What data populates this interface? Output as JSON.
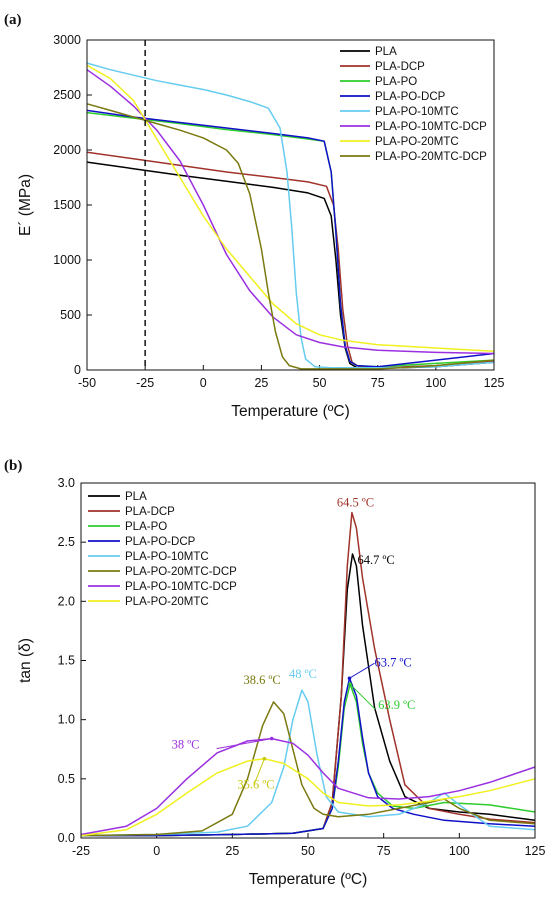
{
  "chart_data": [
    {
      "type": "line",
      "panel_label": "(a)",
      "xlabel": "Temperature (ºC)",
      "ylabel": "E´ (MPa)",
      "xlim": [
        -50,
        125
      ],
      "ylim": [
        0,
        3000
      ],
      "xticks": [
        "-50",
        "-25",
        "0",
        "25",
        "50",
        "75",
        "100",
        "125"
      ],
      "yticks": [
        "0",
        "500",
        "1000",
        "1500",
        "2000",
        "2500",
        "3000"
      ],
      "legend_position": "top-right",
      "reference_line_x": -25,
      "series": [
        {
          "name": "PLA",
          "color": "#000000",
          "x": [
            -50,
            -30,
            -10,
            10,
            30,
            45,
            52,
            55,
            57,
            59,
            61,
            63,
            66,
            75,
            100,
            125
          ],
          "y": [
            1890,
            1830,
            1770,
            1715,
            1660,
            1610,
            1560,
            1400,
            1000,
            500,
            200,
            60,
            20,
            15,
            30,
            70
          ]
        },
        {
          "name": "PLA-DCP",
          "color": "#a0332a",
          "x": [
            -50,
            -30,
            -10,
            10,
            30,
            45,
            53,
            56,
            58,
            60,
            62,
            64,
            67,
            75,
            100,
            125
          ],
          "y": [
            1980,
            1920,
            1860,
            1800,
            1750,
            1710,
            1670,
            1500,
            1100,
            550,
            220,
            70,
            30,
            20,
            40,
            80
          ]
        },
        {
          "name": "PLA-PO",
          "color": "#2ecc2e",
          "x": [
            -50,
            -30,
            -10,
            10,
            30,
            45,
            52,
            55,
            57,
            59,
            61,
            63,
            66,
            75,
            100,
            125
          ],
          "y": [
            2340,
            2290,
            2240,
            2185,
            2140,
            2100,
            2080,
            1800,
            1250,
            600,
            220,
            80,
            40,
            30,
            60,
            90
          ]
        },
        {
          "name": "PLA-PO-DCP",
          "color": "#1010c8",
          "x": [
            -50,
            -30,
            -10,
            10,
            30,
            45,
            52,
            55,
            57,
            59,
            61,
            63,
            66,
            75,
            100,
            125
          ],
          "y": [
            2360,
            2300,
            2250,
            2200,
            2150,
            2110,
            2080,
            1800,
            1250,
            600,
            220,
            80,
            40,
            30,
            90,
            150
          ]
        },
        {
          "name": "PLA-PO-10MTC",
          "color": "#66ccf0",
          "x": [
            -50,
            -40,
            -30,
            -20,
            -10,
            0,
            10,
            20,
            28,
            33,
            36,
            38,
            40,
            42,
            44,
            48,
            55,
            75,
            100,
            125
          ],
          "y": [
            2790,
            2730,
            2680,
            2630,
            2590,
            2550,
            2500,
            2440,
            2380,
            2200,
            1800,
            1300,
            700,
            300,
            100,
            30,
            20,
            20,
            30,
            70
          ]
        },
        {
          "name": "PLA-PO-10MTC-DCP",
          "color": "#9b30e0",
          "x": [
            -50,
            -40,
            -30,
            -20,
            -10,
            0,
            10,
            20,
            30,
            40,
            50,
            60,
            75,
            100,
            125
          ],
          "y": [
            2730,
            2580,
            2400,
            2180,
            1900,
            1500,
            1050,
            720,
            480,
            320,
            250,
            210,
            180,
            160,
            150
          ]
        },
        {
          "name": "PLA-PO-20MTC",
          "color": "#f0f020",
          "x": [
            -50,
            -40,
            -30,
            -20,
            -10,
            0,
            10,
            20,
            30,
            40,
            50,
            60,
            75,
            100,
            125
          ],
          "y": [
            2770,
            2650,
            2450,
            2100,
            1750,
            1400,
            1100,
            850,
            600,
            420,
            320,
            270,
            230,
            200,
            170
          ]
        },
        {
          "name": "PLA-PO-20MTC-DCP",
          "color": "#7a7a10",
          "x": [
            -50,
            -40,
            -30,
            -20,
            -10,
            0,
            10,
            15,
            20,
            25,
            28,
            31,
            34,
            37,
            42,
            50,
            75,
            100,
            125
          ],
          "y": [
            2420,
            2360,
            2300,
            2240,
            2180,
            2110,
            2000,
            1880,
            1600,
            1100,
            700,
            350,
            120,
            40,
            10,
            10,
            10,
            40,
            90
          ]
        }
      ]
    },
    {
      "type": "line",
      "panel_label": "(b)",
      "xlabel": "Temperature (ºC)",
      "ylabel": "tan (δ)",
      "xlim": [
        -25,
        125
      ],
      "ylim": [
        0.0,
        3.0
      ],
      "xticks": [
        "-25",
        "0",
        "25",
        "50",
        "75",
        "100",
        "125"
      ],
      "yticks": [
        "0.0",
        "0.5",
        "1.0",
        "1.5",
        "2.0",
        "2.5",
        "3.0"
      ],
      "legend_position": "top-left",
      "series": [
        {
          "name": "PLA",
          "color": "#000000",
          "x": [
            -25,
            0,
            25,
            45,
            55,
            58,
            61,
            63,
            64.7,
            66,
            68,
            72,
            77,
            82,
            90,
            100,
            110,
            125
          ],
          "y": [
            0.02,
            0.02,
            0.03,
            0.04,
            0.08,
            0.3,
            1.2,
            2.1,
            2.4,
            2.3,
            1.8,
            1.1,
            0.65,
            0.35,
            0.25,
            0.22,
            0.2,
            0.15
          ]
        },
        {
          "name": "PLA-DCP",
          "color": "#a0332a",
          "x": [
            -25,
            0,
            25,
            45,
            55,
            58,
            61,
            63,
            64.5,
            66,
            68,
            72,
            77,
            82,
            90,
            100,
            110,
            125
          ],
          "y": [
            0.02,
            0.02,
            0.03,
            0.04,
            0.08,
            0.3,
            1.2,
            2.3,
            2.75,
            2.62,
            2.2,
            1.6,
            1.0,
            0.45,
            0.25,
            0.2,
            0.16,
            0.13
          ]
        },
        {
          "name": "PLA-PO",
          "color": "#2ecc2e",
          "x": [
            -25,
            0,
            25,
            45,
            55,
            58,
            60,
            62,
            63.9,
            66,
            68,
            70,
            73,
            78,
            85,
            95,
            110,
            125
          ],
          "y": [
            0.02,
            0.02,
            0.03,
            0.04,
            0.08,
            0.25,
            0.6,
            1.1,
            1.3,
            1.15,
            0.8,
            0.55,
            0.38,
            0.27,
            0.25,
            0.3,
            0.28,
            0.22
          ]
        },
        {
          "name": "PLA-PO-DCP",
          "color": "#1010c8",
          "x": [
            -25,
            0,
            25,
            45,
            55,
            58,
            60,
            62,
            63.7,
            66,
            68,
            70,
            73,
            78,
            85,
            95,
            110,
            125
          ],
          "y": [
            0.02,
            0.02,
            0.03,
            0.04,
            0.08,
            0.25,
            0.65,
            1.15,
            1.35,
            1.2,
            0.85,
            0.55,
            0.35,
            0.25,
            0.2,
            0.15,
            0.12,
            0.1
          ]
        },
        {
          "name": "PLA-PO-10MTC",
          "color": "#66ccf0",
          "x": [
            -25,
            0,
            20,
            30,
            38,
            42,
            45,
            48,
            50,
            53,
            56,
            60,
            70,
            80,
            90,
            95,
            100,
            110,
            125
          ],
          "y": [
            0.02,
            0.03,
            0.05,
            0.1,
            0.3,
            0.6,
            1.0,
            1.25,
            1.15,
            0.7,
            0.35,
            0.22,
            0.18,
            0.2,
            0.3,
            0.38,
            0.28,
            0.1,
            0.07
          ]
        },
        {
          "name": "PLA-PO-20MTC-DCP",
          "color": "#7a7a10",
          "x": [
            -25,
            0,
            15,
            25,
            30,
            35,
            38.6,
            42,
            45,
            48,
            52,
            55,
            60,
            70,
            80,
            90,
            95,
            100,
            110,
            125
          ],
          "y": [
            0.02,
            0.03,
            0.06,
            0.2,
            0.5,
            0.95,
            1.15,
            1.05,
            0.75,
            0.45,
            0.25,
            0.2,
            0.18,
            0.2,
            0.25,
            0.3,
            0.33,
            0.25,
            0.15,
            0.12
          ]
        },
        {
          "name": "PLA-PO-10MTC-DCP",
          "color": "#9b30e0",
          "x": [
            -25,
            -10,
            0,
            10,
            20,
            30,
            38,
            45,
            50,
            55,
            60,
            70,
            80,
            90,
            100,
            110,
            125
          ],
          "y": [
            0.03,
            0.1,
            0.25,
            0.5,
            0.72,
            0.82,
            0.84,
            0.8,
            0.7,
            0.55,
            0.42,
            0.34,
            0.33,
            0.35,
            0.4,
            0.47,
            0.6
          ]
        },
        {
          "name": "PLA-PO-20MTC",
          "color": "#f0f020",
          "x": [
            -25,
            -10,
            0,
            10,
            20,
            30,
            35.6,
            42,
            50,
            55,
            60,
            70,
            80,
            90,
            100,
            110,
            125
          ],
          "y": [
            0.02,
            0.07,
            0.2,
            0.38,
            0.55,
            0.65,
            0.67,
            0.63,
            0.5,
            0.38,
            0.3,
            0.27,
            0.28,
            0.31,
            0.35,
            0.4,
            0.5
          ]
        }
      ],
      "annotations": [
        {
          "text": "64.5 ºC",
          "x": 64.5,
          "y": 2.75,
          "color": "#a0332a"
        },
        {
          "text": "64.7 ºC",
          "x": 64.7,
          "y": 2.4,
          "color": "#000000"
        },
        {
          "text": "63.7 ºC",
          "x": 63.7,
          "y": 1.35,
          "color": "#1010c8"
        },
        {
          "text": "63.9 ºC",
          "x": 63.9,
          "y": 1.3,
          "color": "#2ecc2e"
        },
        {
          "text": "48 ºC",
          "x": 48,
          "y": 1.25,
          "color": "#66ccf0"
        },
        {
          "text": "38.6 ºC",
          "x": 38.6,
          "y": 1.15,
          "color": "#7a7a10"
        },
        {
          "text": "38 ºC",
          "x": 38,
          "y": 0.84,
          "color": "#9b30e0"
        },
        {
          "text": "35.6 ºC",
          "x": 35.6,
          "y": 0.67,
          "color": "#c8c810"
        }
      ]
    }
  ]
}
